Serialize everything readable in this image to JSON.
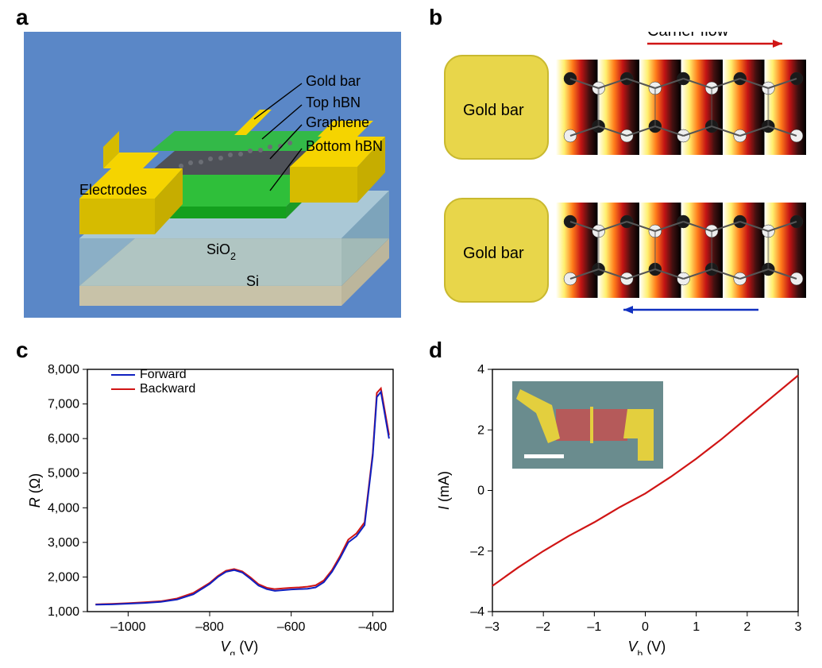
{
  "labels": {
    "a": "a",
    "b": "b",
    "c": "c",
    "d": "d"
  },
  "panelA": {
    "bg": "#5a87c7",
    "si_top": "#d6d0b8",
    "si_side": "#c8c2a8",
    "sio2_top": "#b8d4d8",
    "sio2_side": "#9fc0c6",
    "hbn_green": "#2fbf3a",
    "hbn_side": "#14a01e",
    "gold": "#f5d400",
    "gold_side": "#d6bb00",
    "graphene_atom": "#6b6e75",
    "graphene_bond": "#3b3e45",
    "callouts": {
      "electrodes": "Electrodes",
      "goldbar": "Gold bar",
      "top_hbn": "Top hBN",
      "graphene": "Graphene",
      "bottom_hbn": "Bottom hBN",
      "sio2": "SiO",
      "sio2_sub": "2",
      "si": "Si"
    },
    "fontsize": 18,
    "arrow": "#000000"
  },
  "panelB": {
    "bg": "#ffffff",
    "gold": "#e8d64a",
    "gold_stroke": "#c9b92f",
    "label": "Gold bar",
    "n_stripes": 6,
    "stripe_colors": [
      "#ffffff",
      "#ffef6e",
      "#ff7b1a",
      "#c31414",
      "#401010",
      "#000000"
    ],
    "atom_dark": "#1a1a1a",
    "atom_light": "#eeeeee",
    "bond": "#555555",
    "arrow_fwd": "#d01515",
    "arrow_rev": "#1030c0",
    "carrier_label": "Carrier flow",
    "fontsize": 20
  },
  "panelC": {
    "type": "line",
    "xlabel": "V",
    "xlabel_sub": "g",
    "xlabel_unit": " (V)",
    "ylabel": "R",
    "ylabel_unit": " (Ω)",
    "xlim": [
      -1100,
      -350
    ],
    "ylim": [
      1000,
      8000
    ],
    "xticks": [
      -1000,
      -800,
      -600,
      -400
    ],
    "yticks": [
      1000,
      2000,
      3000,
      4000,
      5000,
      6000,
      7000,
      8000
    ],
    "ytick_labels": [
      "1,000",
      "2,000",
      "3,000",
      "4,000",
      "5,000",
      "6,000",
      "7,000",
      "8,000"
    ],
    "legend": {
      "forward": "Forward",
      "backward": "Backward"
    },
    "forward_color": "#1020c0",
    "backward_color": "#d01515",
    "axis_color": "#000000",
    "fontsize": 16,
    "forward": {
      "x": [
        -1080,
        -1040,
        -1000,
        -960,
        -920,
        -880,
        -840,
        -800,
        -780,
        -760,
        -740,
        -720,
        -700,
        -680,
        -660,
        -640,
        -620,
        -600,
        -580,
        -560,
        -540,
        -520,
        -500,
        -480,
        -460,
        -440,
        -420,
        -400,
        -390,
        -380,
        -360
      ],
      "y": [
        1200,
        1210,
        1230,
        1250,
        1280,
        1350,
        1500,
        1800,
        2000,
        2150,
        2200,
        2130,
        1950,
        1750,
        1650,
        1600,
        1620,
        1640,
        1650,
        1660,
        1700,
        1850,
        2150,
        2550,
        3000,
        3180,
        3500,
        5500,
        7200,
        7350,
        6000
      ]
    },
    "backward": {
      "x": [
        -1080,
        -1040,
        -1000,
        -960,
        -920,
        -880,
        -840,
        -800,
        -780,
        -760,
        -740,
        -720,
        -700,
        -680,
        -660,
        -640,
        -620,
        -600,
        -580,
        -560,
        -540,
        -520,
        -500,
        -480,
        -460,
        -440,
        -420,
        -400,
        -390,
        -380,
        -360
      ],
      "y": [
        1210,
        1225,
        1245,
        1270,
        1300,
        1380,
        1540,
        1830,
        2030,
        2180,
        2230,
        2160,
        1990,
        1790,
        1690,
        1650,
        1670,
        1690,
        1700,
        1720,
        1760,
        1900,
        2200,
        2610,
        3080,
        3260,
        3580,
        5580,
        7320,
        7450,
        6100
      ]
    }
  },
  "panelD": {
    "type": "line",
    "xlabel": "V",
    "xlabel_sub": "b",
    "xlabel_unit": " (V)",
    "ylabel": "I",
    "ylabel_unit": " (mA)",
    "xlim": [
      -3,
      3
    ],
    "ylim": [
      -4,
      4
    ],
    "xticks": [
      -3,
      -2,
      -1,
      0,
      1,
      2,
      3
    ],
    "yticks": [
      -4,
      -2,
      0,
      2,
      4
    ],
    "color": "#d01515",
    "axis_color": "#000000",
    "fontsize": 16,
    "series": {
      "x": [
        -3.0,
        -2.5,
        -2.0,
        -1.5,
        -1.0,
        -0.5,
        0.0,
        0.5,
        1.0,
        1.5,
        2.0,
        2.5,
        3.0
      ],
      "y": [
        -3.15,
        -2.55,
        -2.0,
        -1.5,
        -1.05,
        -0.55,
        -0.1,
        0.45,
        1.05,
        1.7,
        2.4,
        3.1,
        3.8
      ]
    },
    "inset": {
      "bg": "#6a8c8e",
      "gold": "#e3cf3e",
      "sample": "#b55a5a",
      "bar": "#ffffff"
    }
  }
}
